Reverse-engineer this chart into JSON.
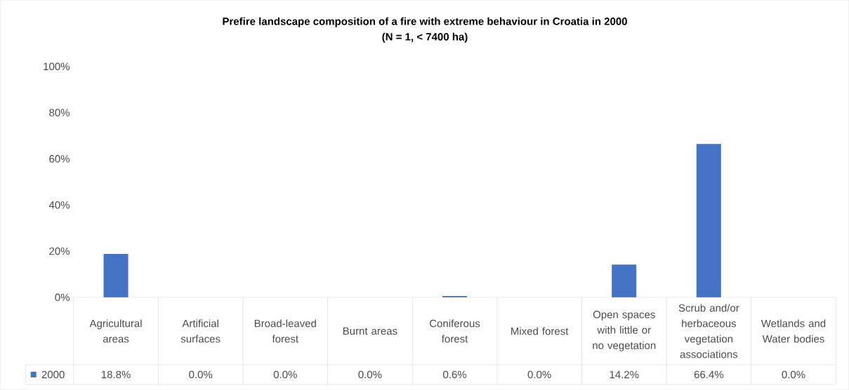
{
  "chart_data": {
    "type": "bar",
    "title": "Prefire landscape composition of a fire with extreme behaviour in Croatia in 2000",
    "subtitle": "(N = 1, < 7400 ha)",
    "categories": [
      "Agricultural areas",
      "Artificial surfaces",
      "Broad-leaved forest",
      "Burnt areas",
      "Coniferous forest",
      "Mixed forest",
      "Open spaces with little or no vegetation",
      "Scrub and/or herbaceous vegetation associations",
      "Wetlands and Water bodies"
    ],
    "series": [
      {
        "name": "2000",
        "color": "#4472c4",
        "values": [
          18.8,
          0.0,
          0.0,
          0.0,
          0.6,
          0.0,
          14.2,
          66.4,
          0.0
        ],
        "value_labels": [
          "18.8%",
          "0.0%",
          "0.0%",
          "0.0%",
          "0.6%",
          "0.0%",
          "14.2%",
          "66.4%",
          "0.0%"
        ]
      }
    ],
    "ylim": [
      0,
      100
    ],
    "yticks": [
      {
        "value": 0,
        "label": "0%"
      },
      {
        "value": 20,
        "label": "20%"
      },
      {
        "value": 40,
        "label": "40%"
      },
      {
        "value": 60,
        "label": "60%"
      },
      {
        "value": 80,
        "label": "80%"
      },
      {
        "value": 100,
        "label": "100%"
      }
    ],
    "grid": false,
    "legend": "bottom"
  }
}
